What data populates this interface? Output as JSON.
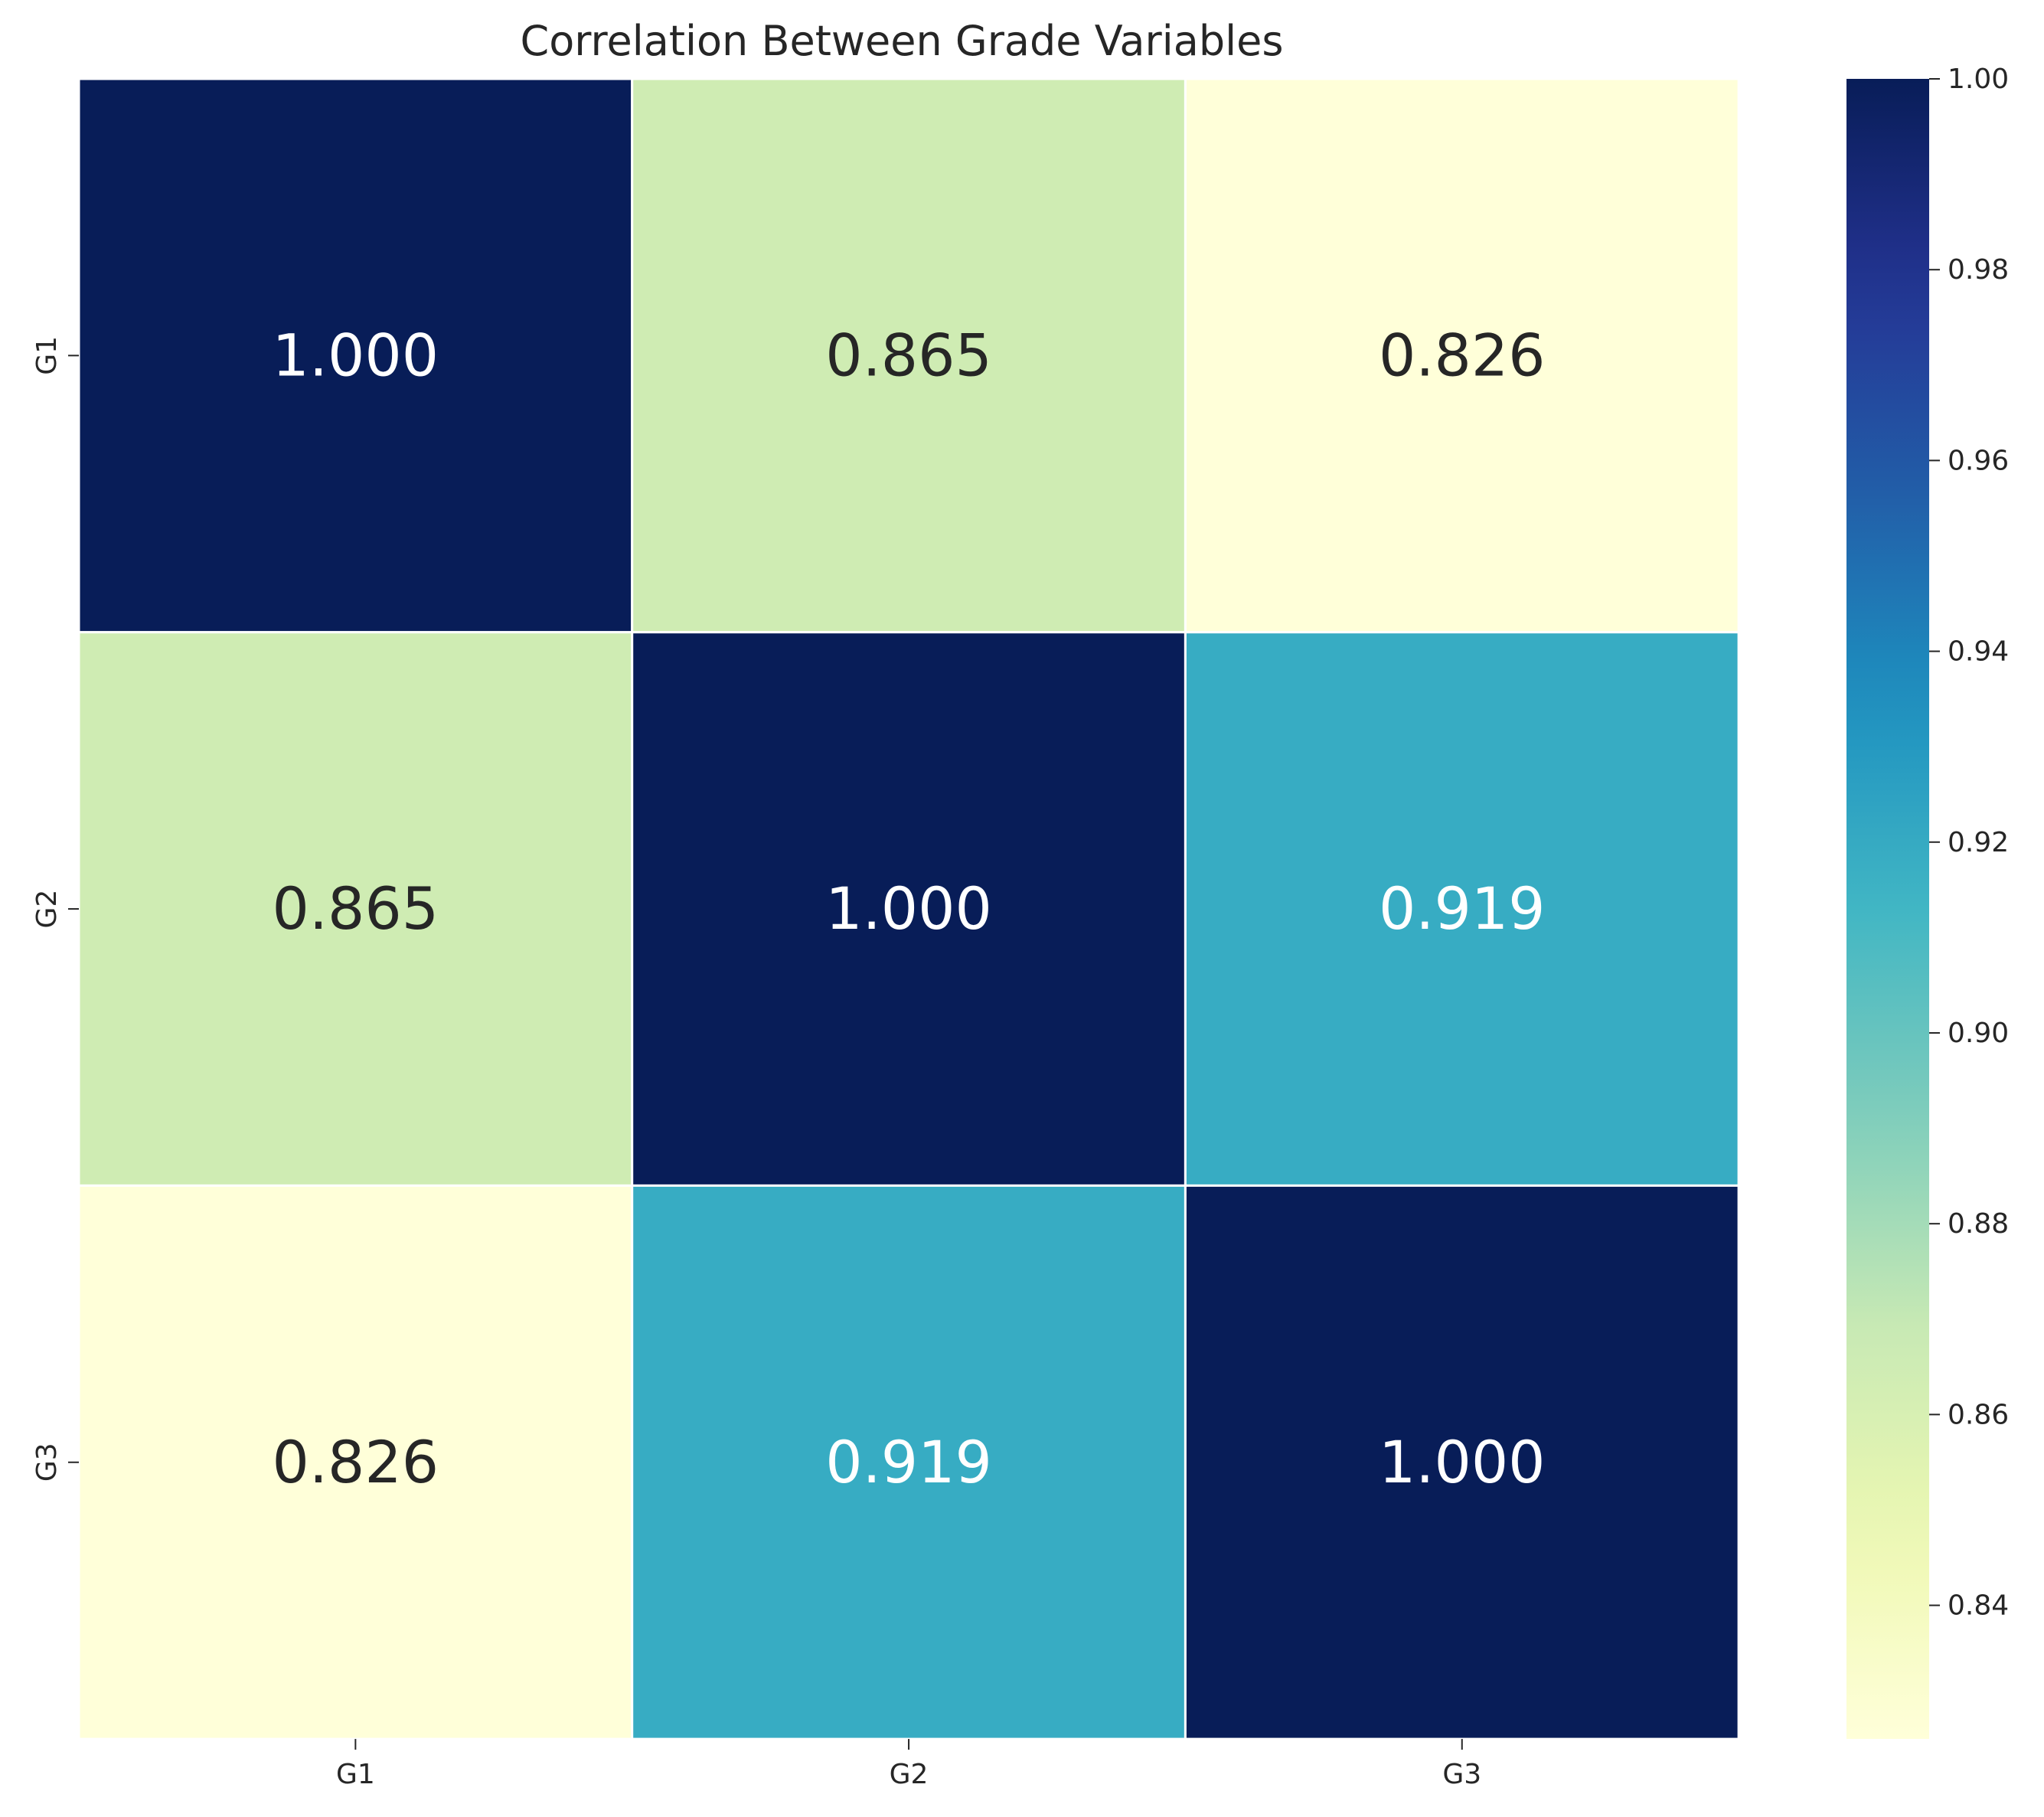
{
  "chart_data": {
    "type": "heatmap",
    "title": "Correlation Between Grade Variables",
    "xlabel": "",
    "ylabel": "",
    "x_categories": [
      "G1",
      "G2",
      "G3"
    ],
    "y_categories": [
      "G1",
      "G2",
      "G3"
    ],
    "values": [
      [
        1.0,
        0.865,
        0.826
      ],
      [
        0.865,
        1.0,
        0.919
      ],
      [
        0.826,
        0.919,
        1.0
      ]
    ],
    "value_format": "0.000",
    "colormap": "YlGnBu",
    "colorbar": {
      "min": 0.826,
      "max": 1.0,
      "ticks": [
        0.84,
        0.86,
        0.88,
        0.9,
        0.92,
        0.94,
        0.96,
        0.98,
        1.0
      ],
      "tick_labels": [
        "0.84",
        "0.86",
        "0.88",
        "0.90",
        "0.92",
        "0.94",
        "0.96",
        "0.98",
        "1.00"
      ]
    },
    "grid_line_color": "#ffffff",
    "annotation_dark_color": "#262626",
    "annotation_light_color": "#ffffff"
  }
}
